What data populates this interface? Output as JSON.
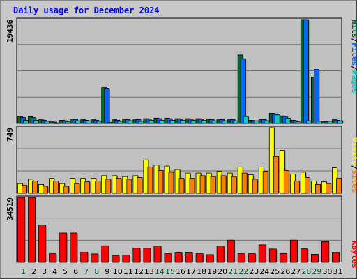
{
  "title": "Daily usage for December 2024",
  "colors": {
    "background": "#c8c8c8",
    "panel": "#c0c0c0",
    "title": "#0000ff",
    "hits": "#006633",
    "files": "#0066ff",
    "pages": "#00cccc",
    "visits": "#ffff00",
    "sites": "#ff8000",
    "kbytes": "#ff0000",
    "weekend_label": "#006633",
    "weekday_label": "#000000"
  },
  "chart_data": [
    {
      "type": "bar",
      "panel": "hits-files-pages",
      "max_label": "19436",
      "ylim": [
        0,
        19436
      ],
      "legend": [
        {
          "label": "Pages",
          "color": "#00cccc"
        },
        {
          "label": "/",
          "color": "#000000"
        },
        {
          "label": "Files",
          "color": "#0066ff"
        },
        {
          "label": "/",
          "color": "#000000"
        },
        {
          "label": "Hits",
          "color": "#006633"
        }
      ],
      "series": [
        {
          "name": "Hits",
          "values": [
            1300,
            1250,
            700,
            300,
            600,
            800,
            700,
            700,
            6700,
            700,
            800,
            800,
            900,
            1000,
            1000,
            900,
            900,
            900,
            800,
            800,
            800,
            12800,
            600,
            800,
            1900,
            1400,
            600,
            19436,
            8600,
            400,
            700
          ]
        },
        {
          "name": "Files",
          "values": [
            1100,
            1100,
            600,
            250,
            500,
            700,
            600,
            600,
            6600,
            600,
            700,
            700,
            800,
            900,
            900,
            800,
            800,
            800,
            700,
            700,
            700,
            12100,
            500,
            700,
            1800,
            1300,
            500,
            19436,
            10100,
            300,
            600
          ]
        },
        {
          "name": "Pages",
          "values": [
            600,
            600,
            400,
            100,
            300,
            500,
            500,
            400,
            200,
            400,
            500,
            400,
            600,
            600,
            600,
            600,
            600,
            600,
            500,
            500,
            500,
            1300,
            500,
            500,
            1600,
            1000,
            300,
            500,
            400,
            400,
            500
          ]
        }
      ]
    },
    {
      "type": "bar",
      "panel": "visits-sites",
      "max_label": "749",
      "ylim": [
        0,
        749
      ],
      "legend": [
        {
          "label": "Sites",
          "color": "#ff8000"
        },
        {
          "label": "/",
          "color": "#000000"
        },
        {
          "label": "Visits",
          "color": "#ffff00"
        }
      ],
      "series": [
        {
          "name": "Visits",
          "values": [
            110,
            160,
            100,
            170,
            110,
            170,
            170,
            170,
            200,
            200,
            190,
            200,
            380,
            320,
            310,
            270,
            230,
            230,
            230,
            250,
            230,
            300,
            210,
            300,
            749,
            490,
            220,
            240,
            140,
            130,
            290
          ]
        },
        {
          "name": "Sites",
          "values": [
            90,
            140,
            80,
            140,
            80,
            110,
            130,
            140,
            160,
            170,
            160,
            180,
            300,
            260,
            240,
            170,
            170,
            200,
            190,
            200,
            190,
            230,
            160,
            250,
            420,
            260,
            140,
            180,
            100,
            110,
            170
          ]
        }
      ]
    },
    {
      "type": "bar",
      "panel": "kbytes",
      "max_label": "34519",
      "ylim": [
        0,
        34519
      ],
      "legend": [
        {
          "label": "KBytes",
          "color": "#ff0000"
        }
      ],
      "series": [
        {
          "name": "KBytes",
          "values": [
            34519,
            34519,
            19800,
            4600,
            15600,
            15600,
            5300,
            4500,
            8800,
            3700,
            3900,
            7500,
            7500,
            8700,
            4600,
            5000,
            5000,
            4600,
            4100,
            8700,
            11800,
            4600,
            4600,
            9300,
            7100,
            4700,
            11800,
            7200,
            4300,
            11000,
            5200
          ]
        }
      ]
    }
  ],
  "x_labels": [
    "1",
    "2",
    "3",
    "4",
    "5",
    "6",
    "7",
    "8",
    "9",
    "10",
    "11",
    "12",
    "13",
    "14",
    "15",
    "16",
    "17",
    "18",
    "19",
    "20",
    "21",
    "22",
    "23",
    "24",
    "25",
    "26",
    "27",
    "28",
    "29",
    "30",
    "31"
  ],
  "weekend_days": [
    1,
    7,
    8,
    14,
    15,
    21,
    22,
    28,
    29
  ]
}
